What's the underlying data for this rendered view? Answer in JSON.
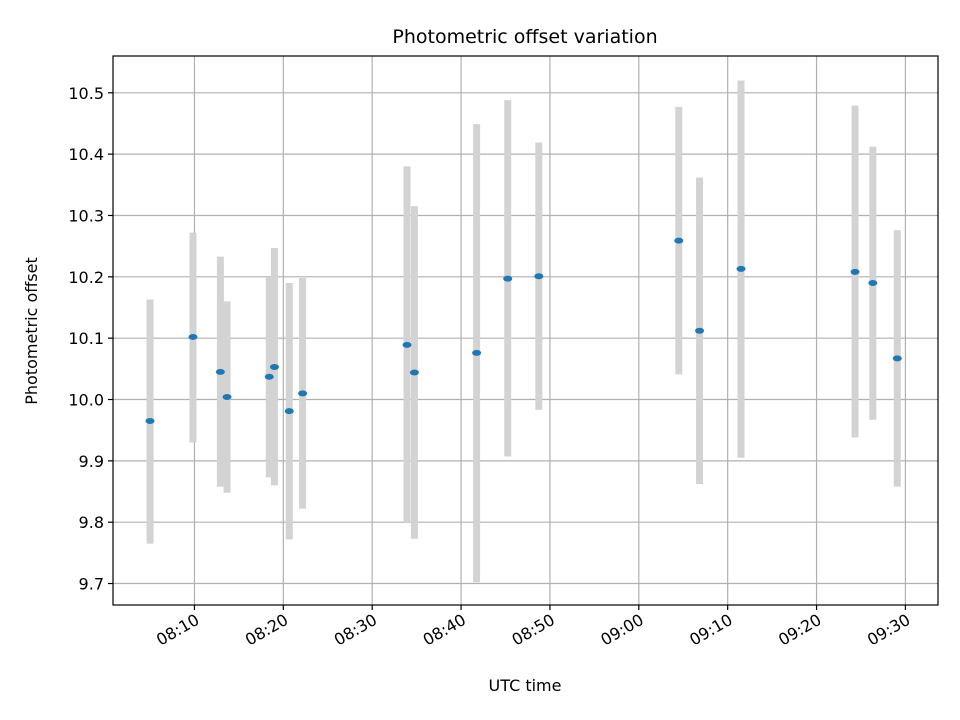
{
  "chart_data": {
    "type": "scatter",
    "title": "Photometric offset variation",
    "xlabel": "UTC time",
    "ylabel": "Photometric offset",
    "x_ticks": [
      "08:10",
      "08:20",
      "08:30",
      "08:40",
      "08:50",
      "09:00",
      "09:10",
      "09:20",
      "09:30"
    ],
    "y_ticks": [
      "9.7",
      "9.8",
      "9.9",
      "10.0",
      "10.1",
      "10.2",
      "10.3",
      "10.4",
      "10.5"
    ],
    "xlim": [
      "08:00:50",
      "09:33:40"
    ],
    "ylim": [
      9.665,
      10.56
    ],
    "grid": true,
    "colors": {
      "marker": "#1f77b4",
      "errorbar": "#d3d3d3",
      "grid": "#b0b0b0",
      "axes": "#000000"
    },
    "series": [
      {
        "points": [
          {
            "x": "08:05:00",
            "y": 9.965,
            "ylow": 9.765,
            "yhigh": 10.163
          },
          {
            "x": "08:09:50",
            "y": 10.102,
            "ylow": 9.93,
            "yhigh": 10.272
          },
          {
            "x": "08:12:55",
            "y": 10.045,
            "ylow": 9.858,
            "yhigh": 10.233
          },
          {
            "x": "08:13:40",
            "y": 10.004,
            "ylow": 9.848,
            "yhigh": 10.16
          },
          {
            "x": "08:18:25",
            "y": 10.037,
            "ylow": 9.873,
            "yhigh": 10.2
          },
          {
            "x": "08:19:00",
            "y": 10.053,
            "ylow": 9.86,
            "yhigh": 10.247
          },
          {
            "x": "08:20:40",
            "y": 9.981,
            "ylow": 9.772,
            "yhigh": 10.19
          },
          {
            "x": "08:22:10",
            "y": 10.01,
            "ylow": 9.822,
            "yhigh": 10.198
          },
          {
            "x": "08:33:55",
            "y": 10.089,
            "ylow": 9.8,
            "yhigh": 10.38
          },
          {
            "x": "08:34:45",
            "y": 10.044,
            "ylow": 9.773,
            "yhigh": 10.315
          },
          {
            "x": "08:41:45",
            "y": 10.076,
            "ylow": 9.702,
            "yhigh": 10.449
          },
          {
            "x": "08:45:15",
            "y": 10.197,
            "ylow": 9.907,
            "yhigh": 10.488
          },
          {
            "x": "08:48:45",
            "y": 10.201,
            "ylow": 9.983,
            "yhigh": 10.419
          },
          {
            "x": "09:04:30",
            "y": 10.259,
            "ylow": 10.041,
            "yhigh": 10.477
          },
          {
            "x": "09:06:50",
            "y": 10.112,
            "ylow": 9.862,
            "yhigh": 10.362
          },
          {
            "x": "09:11:30",
            "y": 10.213,
            "ylow": 9.905,
            "yhigh": 10.52
          },
          {
            "x": "09:24:20",
            "y": 10.208,
            "ylow": 9.938,
            "yhigh": 10.479
          },
          {
            "x": "09:26:20",
            "y": 10.19,
            "ylow": 9.967,
            "yhigh": 10.412
          },
          {
            "x": "09:29:05",
            "y": 10.067,
            "ylow": 9.858,
            "yhigh": 10.276
          }
        ]
      }
    ]
  }
}
